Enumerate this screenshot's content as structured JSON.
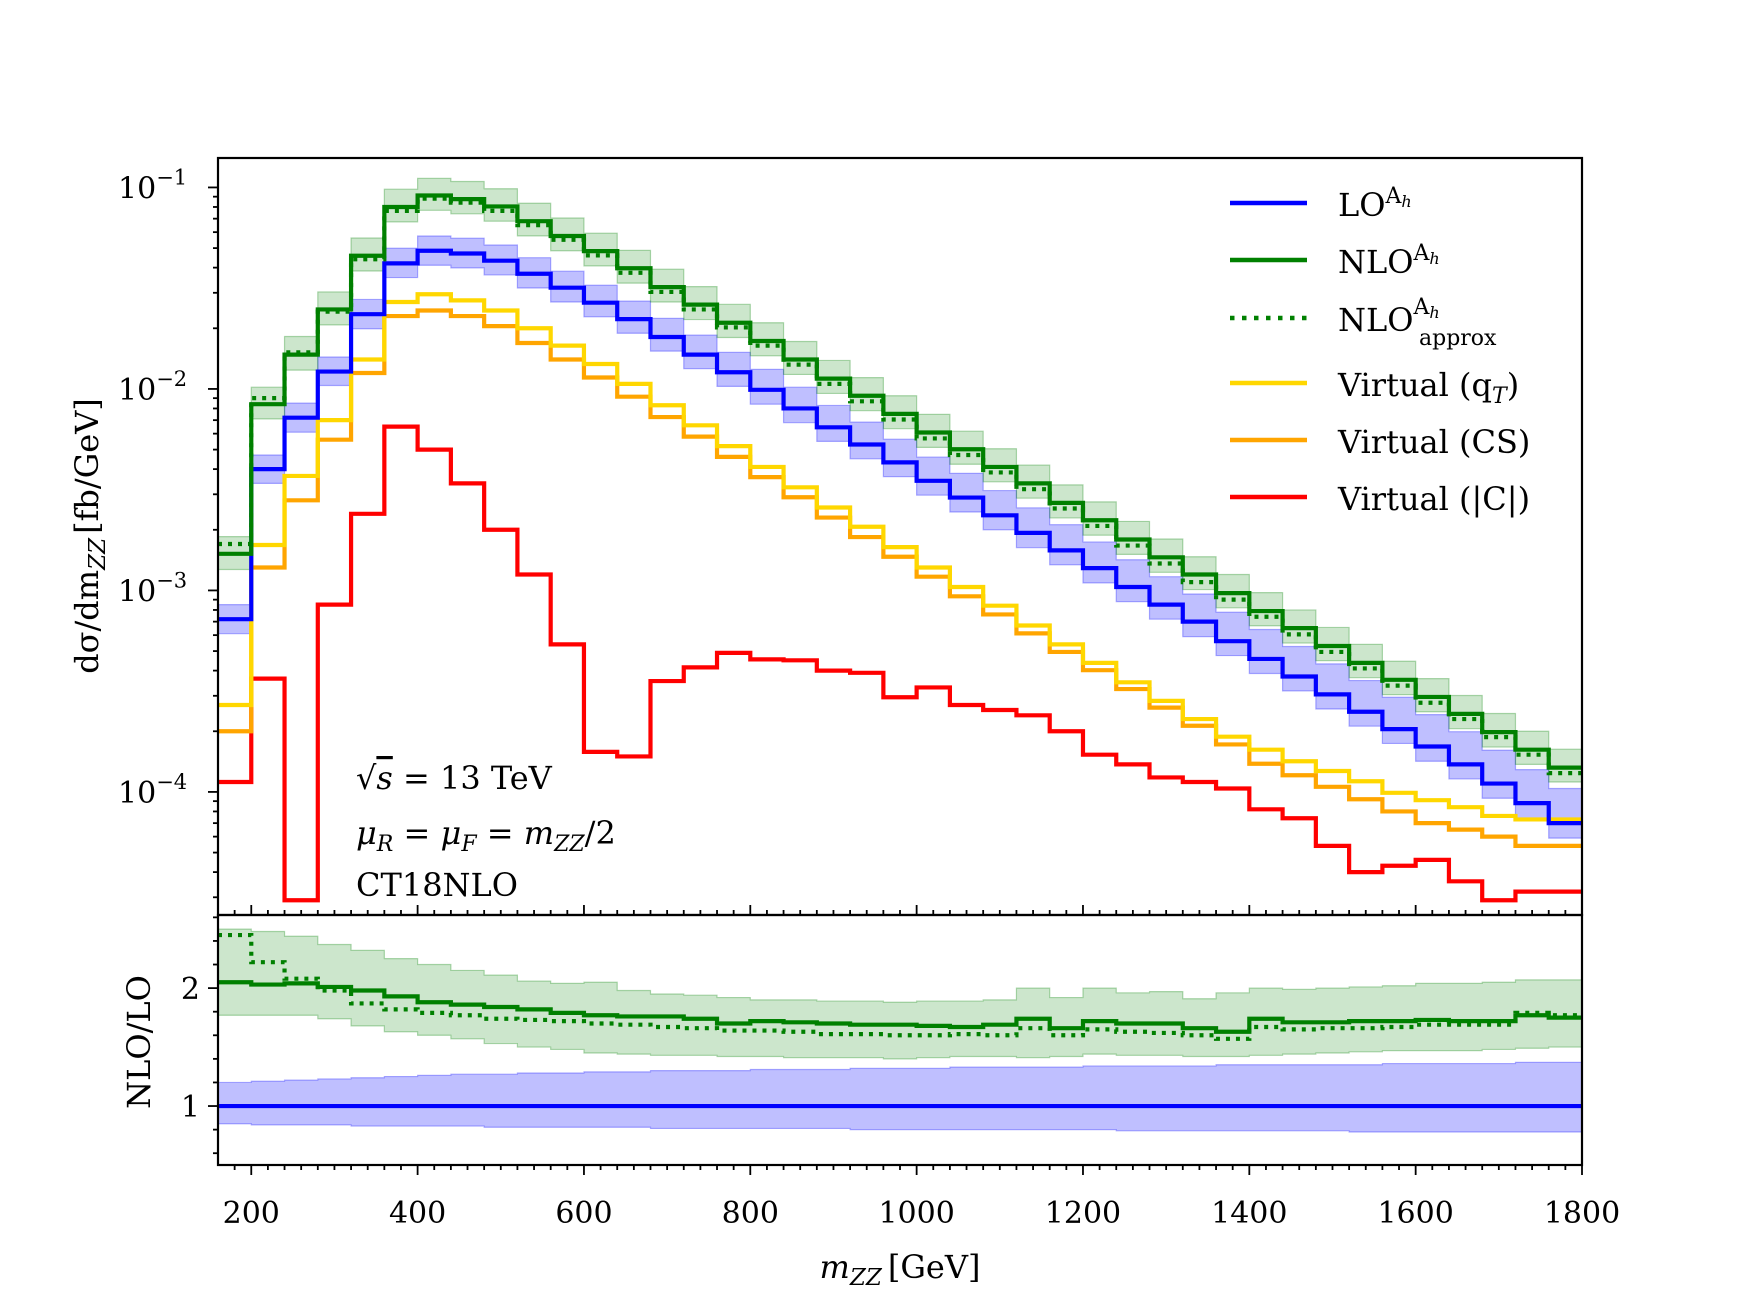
{
  "chart_data": [
    {
      "type": "line",
      "subtype": "step-histogram",
      "title": "",
      "xlabel_main": "m",
      "xlabel_sub": "ZZ",
      "xlabel_unit": "[GeV]",
      "ylabel": "dσ/dm_ZZ [fb/GeV]",
      "ylabel_pre": "dσ/dm",
      "ylabel_sub": "ZZ",
      "ylabel_unit": "[fb/GeV]",
      "yscale": "log",
      "xlim": [
        160,
        1800
      ],
      "ylim": [
        2.45e-05,
        0.14
      ],
      "xticks": [
        200,
        400,
        600,
        800,
        1000,
        1200,
        1400,
        1600,
        1800
      ],
      "xtick_labels": [
        "200",
        "400",
        "600",
        "800",
        "1000",
        "1200",
        "1400",
        "1600",
        "1800"
      ],
      "yticks": [
        {
          "value": 0.1,
          "base": "10",
          "exp": "−1"
        },
        {
          "value": 0.01,
          "base": "10",
          "exp": "−2"
        },
        {
          "value": 0.001,
          "base": "10",
          "exp": "−3"
        },
        {
          "value": 0.0001,
          "base": "10",
          "exp": "−4"
        }
      ],
      "bin_edges": [
        160,
        200,
        240,
        280,
        320,
        360,
        400,
        440,
        480,
        520,
        560,
        600,
        640,
        680,
        720,
        760,
        800,
        840,
        880,
        920,
        960,
        1000,
        1040,
        1080,
        1120,
        1160,
        1200,
        1240,
        1280,
        1320,
        1360,
        1400,
        1440,
        1480,
        1520,
        1560,
        1600,
        1640,
        1680,
        1720,
        1760,
        1800
      ],
      "series": [
        {
          "name": "LO_band",
          "color": "#0000ff",
          "role": "band",
          "lower": [
            0.00061,
            0.0034,
            0.0061,
            0.0104,
            0.0199,
            0.0357,
            0.0411,
            0.0399,
            0.0368,
            0.0317,
            0.027,
            0.0228,
            0.0189,
            0.0154,
            0.0126,
            0.0103,
            0.0084,
            0.0068,
            0.00549,
            0.0045,
            0.00367,
            0.00297,
            0.00245,
            0.002,
            0.00163,
            0.00134,
            0.00109,
            0.00088,
            0.00072,
            0.00059,
            0.000475,
            0.000387,
            0.000317,
            0.000258,
            0.000212,
            0.000174,
            0.000142,
            0.000116,
            9.3e-05,
            7.4e-05,
            5.9e-05
          ],
          "upper": [
            0.00085,
            0.0047,
            0.0085,
            0.0144,
            0.0278,
            0.0499,
            0.0574,
            0.056,
            0.0518,
            0.0448,
            0.0384,
            0.0327,
            0.0273,
            0.0224,
            0.0185,
            0.0152,
            0.0125,
            0.0102,
            0.00828,
            0.00685,
            0.00563,
            0.00459,
            0.00381,
            0.00313,
            0.00257,
            0.00212,
            0.00174,
            0.00142,
            0.00117,
            0.00096,
            0.00078,
            0.00064,
            0.000527,
            0.000432,
            0.000357,
            0.000295,
            0.000242,
            0.000199,
            0.000161,
            0.000129,
            0.000104
          ]
        },
        {
          "name": "NLO_band",
          "color": "#008000",
          "role": "band",
          "lower": [
            0.00127,
            0.0071,
            0.0124,
            0.0208,
            0.0385,
            0.0675,
            0.077,
            0.074,
            0.068,
            0.0575,
            0.0485,
            0.0408,
            0.0335,
            0.027,
            0.0221,
            0.018,
            0.0146,
            0.0118,
            0.0095,
            0.0078,
            0.00635,
            0.00513,
            0.00423,
            0.00346,
            0.00287,
            0.00229,
            0.00188,
            0.00151,
            0.00123,
            0.00101,
            0.00082,
            0.000668,
            0.000548,
            0.000448,
            0.000369,
            0.000304,
            0.00025,
            0.000206,
            0.000167,
            0.000137,
            0.000112
          ],
          "upper": [
            0.00185,
            0.0102,
            0.0182,
            0.0303,
            0.0561,
            0.098,
            0.111,
            0.107,
            0.0985,
            0.0835,
            0.0705,
            0.0593,
            0.0487,
            0.0393,
            0.0322,
            0.0263,
            0.0213,
            0.0172,
            0.01385,
            0.01138,
            0.00925,
            0.00748,
            0.00617,
            0.00505,
            0.00419,
            0.00334,
            0.00275,
            0.0022,
            0.0018,
            0.00147,
            0.0012,
            0.000975,
            0.0008,
            0.000655,
            0.00054,
            0.000445,
            0.000365,
            0.000301,
            0.000245,
            0.0002,
            0.000163
          ]
        },
        {
          "name": "LO^{A_h}",
          "label_main": "LO",
          "label_sup": "A",
          "label_sup2": "h",
          "color": "#0000ff",
          "style": "solid",
          "legend": true,
          "values": [
            0.00072,
            0.004,
            0.0072,
            0.0122,
            0.0235,
            0.042,
            0.0485,
            0.047,
            0.0433,
            0.0373,
            0.0318,
            0.0268,
            0.0222,
            0.0181,
            0.0148,
            0.0121,
            0.0099,
            0.008,
            0.00645,
            0.0053,
            0.00432,
            0.0035,
            0.00289,
            0.00236,
            0.00193,
            0.00158,
            0.00129,
            0.00104,
            0.00085,
            0.0007,
            0.00056,
            0.000457,
            0.000374,
            0.000305,
            0.00025,
            0.000205,
            0.000168,
            0.000137,
            0.00011,
            8.8e-05,
            7e-05
          ]
        },
        {
          "name": "NLO^{A_h}",
          "label_main": "NLO",
          "label_sup": "A",
          "label_sup2": "h",
          "color": "#008000",
          "style": "solid",
          "legend": true,
          "values": [
            0.00152,
            0.0084,
            0.0148,
            0.0248,
            0.0458,
            0.08,
            0.0912,
            0.0875,
            0.0805,
            0.068,
            0.0574,
            0.0483,
            0.0397,
            0.032,
            0.0262,
            0.0213,
            0.0173,
            0.014,
            0.01125,
            0.00925,
            0.00752,
            0.00608,
            0.00502,
            0.0041,
            0.0034,
            0.00272,
            0.00223,
            0.00179,
            0.00146,
            0.0012,
            0.00097,
            0.00079,
            0.00065,
            0.00053,
            0.000437,
            0.00036,
            0.000296,
            0.000244,
            0.000198,
            0.000162,
            0.000132
          ]
        },
        {
          "name": "NLO^{A_h}_{approx}",
          "label_main": "NLO",
          "label_sup": "A",
          "label_sup2": "h",
          "label_sub": "approx",
          "color": "#008000",
          "style": "dotted",
          "legend": true,
          "values": [
            0.0017,
            0.009,
            0.0152,
            0.0242,
            0.044,
            0.0765,
            0.088,
            0.084,
            0.0765,
            0.065,
            0.055,
            0.046,
            0.0377,
            0.0303,
            0.0248,
            0.0202,
            0.0164,
            0.0132,
            0.0106,
            0.00868,
            0.00705,
            0.00568,
            0.0047,
            0.00385,
            0.00318,
            0.00255,
            0.00209,
            0.00167,
            0.00136,
            0.0011,
            0.0009,
            0.00074,
            0.000605,
            0.000495,
            0.00041,
            0.000337,
            0.000277,
            0.00023,
            0.000187,
            0.000153,
            0.000124
          ]
        },
        {
          "name": "Virtual (q_T)",
          "label_main": "Virtual (q",
          "label_sub": "T",
          "label_tail": ")",
          "color": "#ffd700",
          "style": "solid",
          "legend": true,
          "values": [
            0.00027,
            0.00168,
            0.0037,
            0.007,
            0.014,
            0.027,
            0.0295,
            0.0275,
            0.0245,
            0.02,
            0.0164,
            0.0133,
            0.0106,
            0.0083,
            0.0066,
            0.0052,
            0.0041,
            0.00325,
            0.00258,
            0.00207,
            0.00164,
            0.0013,
            0.00104,
            0.00084,
            0.00067,
            0.00054,
            0.000437,
            0.00035,
            0.000283,
            0.00023,
            0.000188,
            0.000162,
            0.000142,
            0.000127,
            0.000113,
            9.9e-05,
            9.1e-05,
            8.4e-05,
            7.6e-05,
            7.3e-05,
            7.3e-05
          ]
        },
        {
          "name": "Virtual (CS)",
          "label_main": "Virtual (CS)",
          "color": "#ffa500",
          "style": "solid",
          "legend": true,
          "values": [
            0.0002,
            0.0013,
            0.0028,
            0.0056,
            0.012,
            0.023,
            0.0245,
            0.023,
            0.0205,
            0.0169,
            0.014,
            0.0114,
            0.00915,
            0.00725,
            0.0058,
            0.0046,
            0.00365,
            0.0029,
            0.0023,
            0.00184,
            0.00147,
            0.00117,
            0.000935,
            0.00076,
            0.000612,
            0.000495,
            0.000402,
            0.000324,
            0.000262,
            0.000213,
            0.000172,
            0.000138,
            0.000121,
            0.000106,
            9.2e-05,
            8e-05,
            7e-05,
            6.5e-05,
            6e-05,
            5.4e-05,
            5.4e-05
          ]
        },
        {
          "name": "Virtual (|C|)",
          "label_main": "Virtual (|C|)",
          "color": "#ff0000",
          "style": "solid",
          "legend": true,
          "values": [
            0.000112,
            0.000365,
            2.9e-05,
            0.00085,
            0.0024,
            0.0065,
            0.005,
            0.0034,
            0.002,
            0.0012,
            0.00054,
            0.000158,
            0.00015,
            0.000355,
            0.000415,
            0.00049,
            0.000455,
            0.00045,
            0.0004,
            0.00039,
            0.000295,
            0.00033,
            0.00027,
            0.000255,
            0.00024,
            0.0002,
            0.000153,
            0.000137,
            0.000118,
            0.000112,
            0.000104,
            8.2e-05,
            7.4e-05,
            5.4e-05,
            4e-05,
            4.3e-05,
            4.6e-05,
            3.6e-05,
            2.9e-05,
            3.2e-05,
            3.2e-05
          ]
        }
      ],
      "annotations": {
        "energy_pre": "√",
        "energy_var": "s",
        "energy_rest": " = 13 TeV",
        "scale_mu": "μ",
        "scale_R": "R",
        "scale_eq1": " = ",
        "scale_F": "F",
        "scale_eq2": " = ",
        "scale_m": "m",
        "scale_ZZ": "ZZ",
        "scale_tail": "/2",
        "pdf": "CT18NLO"
      },
      "legend_position": "top-right"
    },
    {
      "type": "line",
      "subtype": "ratio-step",
      "ylabel": "NLO/LO",
      "ylim": [
        0.5,
        2.62
      ],
      "yticks": [
        1,
        2
      ],
      "ytick_labels": [
        "1",
        "2"
      ],
      "xlim": [
        160,
        1800
      ],
      "bin_edges": [
        160,
        200,
        240,
        280,
        320,
        360,
        400,
        440,
        480,
        520,
        560,
        600,
        640,
        680,
        720,
        760,
        800,
        840,
        880,
        920,
        960,
        1000,
        1040,
        1080,
        1120,
        1160,
        1200,
        1240,
        1280,
        1320,
        1360,
        1400,
        1440,
        1480,
        1520,
        1560,
        1600,
        1640,
        1680,
        1720,
        1760,
        1800
      ],
      "series": [
        {
          "name": "LO_ratio_band",
          "color": "#0000ff",
          "role": "band",
          "lower": [
            0.85,
            0.84,
            0.84,
            0.84,
            0.83,
            0.83,
            0.83,
            0.83,
            0.82,
            0.82,
            0.82,
            0.82,
            0.82,
            0.81,
            0.81,
            0.81,
            0.81,
            0.81,
            0.81,
            0.8,
            0.8,
            0.8,
            0.8,
            0.8,
            0.8,
            0.8,
            0.8,
            0.79,
            0.79,
            0.79,
            0.79,
            0.79,
            0.79,
            0.79,
            0.78,
            0.78,
            0.78,
            0.78,
            0.78,
            0.78,
            0.78
          ],
          "upper": [
            1.2,
            1.21,
            1.22,
            1.23,
            1.24,
            1.25,
            1.26,
            1.27,
            1.27,
            1.28,
            1.28,
            1.29,
            1.29,
            1.3,
            1.3,
            1.3,
            1.31,
            1.31,
            1.31,
            1.32,
            1.32,
            1.32,
            1.33,
            1.33,
            1.33,
            1.33,
            1.34,
            1.34,
            1.34,
            1.34,
            1.35,
            1.35,
            1.35,
            1.35,
            1.35,
            1.36,
            1.36,
            1.36,
            1.36,
            1.37,
            1.37
          ]
        },
        {
          "name": "NLO_ratio_band",
          "color": "#008000",
          "role": "band",
          "lower": [
            1.77,
            1.77,
            1.77,
            1.74,
            1.68,
            1.63,
            1.6,
            1.57,
            1.53,
            1.5,
            1.48,
            1.45,
            1.44,
            1.43,
            1.43,
            1.42,
            1.42,
            1.41,
            1.41,
            1.41,
            1.4,
            1.41,
            1.42,
            1.42,
            1.41,
            1.42,
            1.44,
            1.43,
            1.43,
            1.42,
            1.42,
            1.43,
            1.44,
            1.45,
            1.46,
            1.47,
            1.47,
            1.47,
            1.48,
            1.49,
            1.5
          ],
          "upper": [
            2.5,
            2.48,
            2.44,
            2.37,
            2.32,
            2.25,
            2.2,
            2.15,
            2.11,
            2.06,
            2.04,
            2.05,
            1.98,
            1.95,
            1.94,
            1.92,
            1.9,
            1.9,
            1.89,
            1.89,
            1.88,
            1.89,
            1.89,
            1.9,
            2.0,
            1.92,
            2.0,
            1.96,
            1.97,
            1.91,
            1.96,
            2.0,
            1.99,
            2.0,
            2.01,
            2.02,
            2.04,
            2.04,
            2.05,
            2.07,
            2.07
          ]
        },
        {
          "name": "NLO_ratio",
          "color": "#008000",
          "style": "solid",
          "values": [
            2.05,
            2.03,
            2.04,
            2.01,
            1.98,
            1.93,
            1.88,
            1.86,
            1.84,
            1.82,
            1.79,
            1.77,
            1.76,
            1.76,
            1.74,
            1.7,
            1.72,
            1.71,
            1.7,
            1.69,
            1.69,
            1.68,
            1.67,
            1.69,
            1.74,
            1.66,
            1.72,
            1.7,
            1.7,
            1.66,
            1.63,
            1.74,
            1.71,
            1.71,
            1.72,
            1.72,
            1.73,
            1.72,
            1.72,
            1.77,
            1.75
          ]
        },
        {
          "name": "NLO_approx_ratio",
          "color": "#008000",
          "style": "dotted",
          "values": [
            2.45,
            2.22,
            2.08,
            1.98,
            1.87,
            1.82,
            1.79,
            1.77,
            1.74,
            1.73,
            1.72,
            1.7,
            1.69,
            1.67,
            1.66,
            1.64,
            1.64,
            1.63,
            1.61,
            1.61,
            1.6,
            1.6,
            1.61,
            1.6,
            1.66,
            1.6,
            1.65,
            1.63,
            1.62,
            1.6,
            1.57,
            1.67,
            1.65,
            1.66,
            1.66,
            1.67,
            1.69,
            1.69,
            1.69,
            1.79,
            1.77
          ]
        },
        {
          "name": "LO_ratio",
          "color": "#0000ff",
          "style": "solid",
          "values": [
            1,
            1,
            1,
            1,
            1,
            1,
            1,
            1,
            1,
            1,
            1,
            1,
            1,
            1,
            1,
            1,
            1,
            1,
            1,
            1,
            1,
            1,
            1,
            1,
            1,
            1,
            1,
            1,
            1,
            1,
            1,
            1,
            1,
            1,
            1,
            1,
            1,
            1,
            1,
            1,
            1
          ]
        }
      ]
    }
  ]
}
